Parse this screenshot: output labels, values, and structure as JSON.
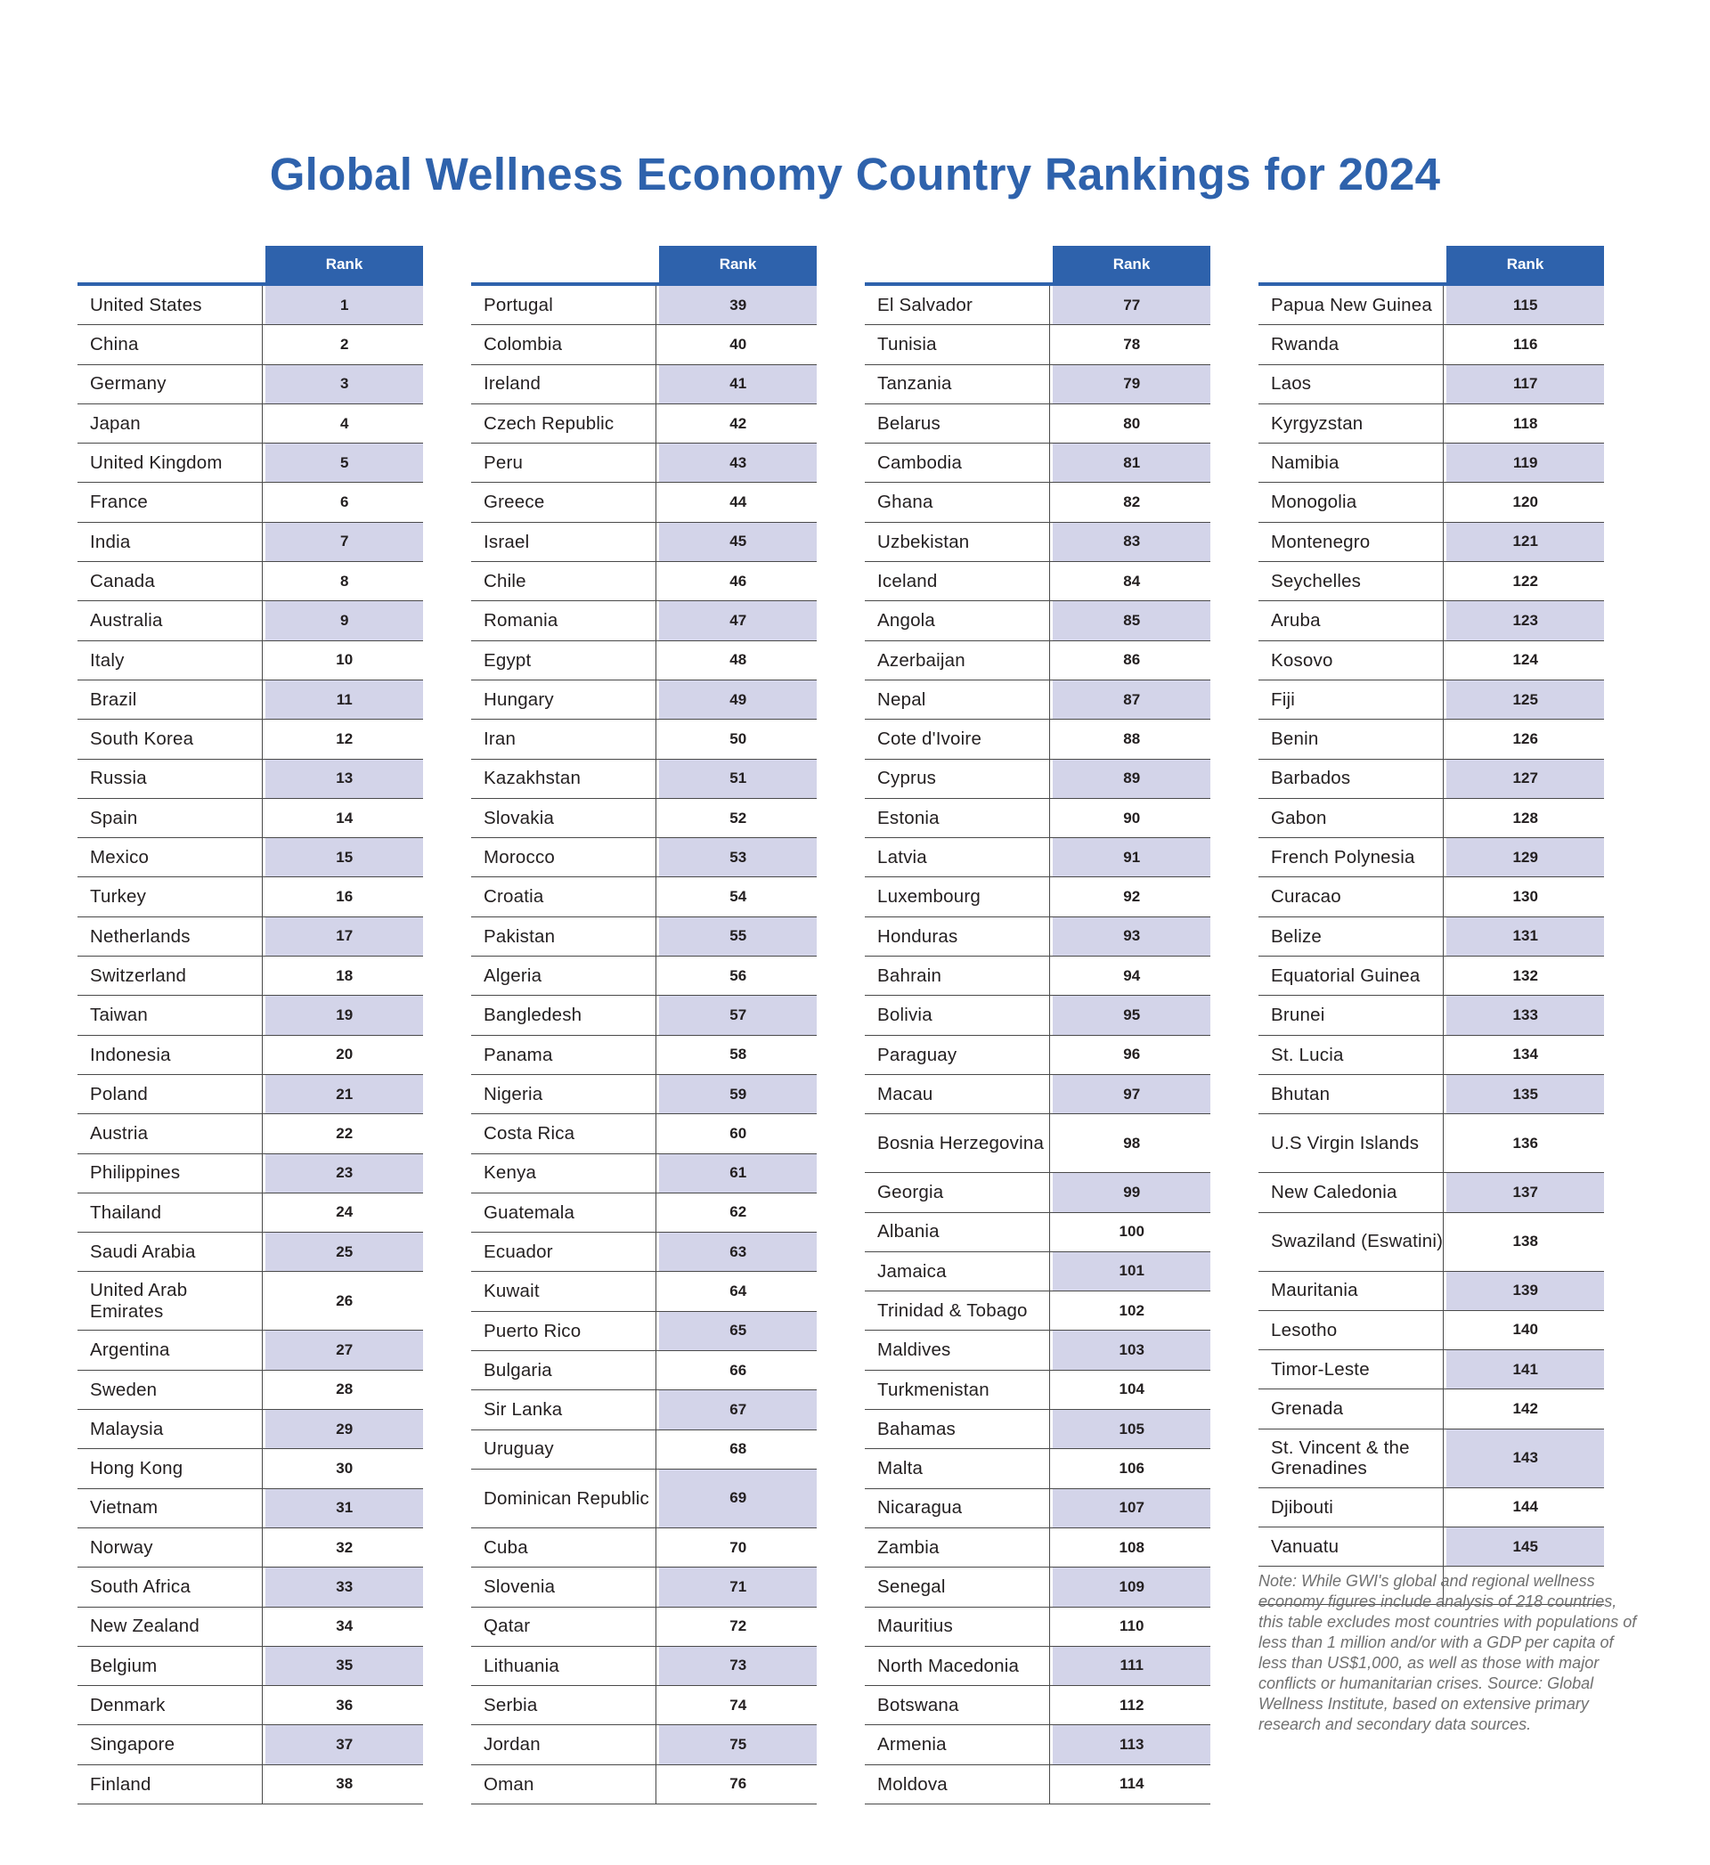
{
  "title": "Global Wellness Economy Country Rankings for 2024",
  "rank_header": "Rank",
  "columns": [
    [
      {
        "country": "United States",
        "rank": "1"
      },
      {
        "country": "China",
        "rank": "2"
      },
      {
        "country": "Germany",
        "rank": "3"
      },
      {
        "country": "Japan",
        "rank": "4"
      },
      {
        "country": "United Kingdom",
        "rank": "5"
      },
      {
        "country": "France",
        "rank": "6"
      },
      {
        "country": "India",
        "rank": "7"
      },
      {
        "country": "Canada",
        "rank": "8"
      },
      {
        "country": "Australia",
        "rank": "9"
      },
      {
        "country": "Italy",
        "rank": "10"
      },
      {
        "country": "Brazil",
        "rank": "11"
      },
      {
        "country": "South Korea",
        "rank": "12"
      },
      {
        "country": "Russia",
        "rank": "13"
      },
      {
        "country": "Spain",
        "rank": "14"
      },
      {
        "country": "Mexico",
        "rank": "15"
      },
      {
        "country": "Turkey",
        "rank": "16"
      },
      {
        "country": "Netherlands",
        "rank": "17"
      },
      {
        "country": "Switzerland",
        "rank": "18"
      },
      {
        "country": "Taiwan",
        "rank": "19"
      },
      {
        "country": "Indonesia",
        "rank": "20"
      },
      {
        "country": "Poland",
        "rank": "21"
      },
      {
        "country": "Austria",
        "rank": "22"
      },
      {
        "country": "Philippines",
        "rank": "23"
      },
      {
        "country": "Thailand",
        "rank": "24"
      },
      {
        "country": "Saudi Arabia",
        "rank": "25"
      },
      {
        "country": "United Arab Emirates",
        "rank": "26"
      },
      {
        "country": "Argentina",
        "rank": "27"
      },
      {
        "country": "Sweden",
        "rank": "28"
      },
      {
        "country": "Malaysia",
        "rank": "29"
      },
      {
        "country": "Hong Kong",
        "rank": "30"
      },
      {
        "country": "Vietnam",
        "rank": "31"
      },
      {
        "country": "Norway",
        "rank": "32"
      },
      {
        "country": "South Africa",
        "rank": "33"
      },
      {
        "country": "New Zealand",
        "rank": "34"
      },
      {
        "country": "Belgium",
        "rank": "35"
      },
      {
        "country": "Denmark",
        "rank": "36"
      },
      {
        "country": "Singapore",
        "rank": "37"
      },
      {
        "country": "Finland",
        "rank": "38"
      }
    ],
    [
      {
        "country": "Portugal",
        "rank": "39"
      },
      {
        "country": "Colombia",
        "rank": "40"
      },
      {
        "country": "Ireland",
        "rank": "41"
      },
      {
        "country": "Czech Republic",
        "rank": "42"
      },
      {
        "country": "Peru",
        "rank": "43"
      },
      {
        "country": "Greece",
        "rank": "44"
      },
      {
        "country": "Israel",
        "rank": "45"
      },
      {
        "country": "Chile",
        "rank": "46"
      },
      {
        "country": "Romania",
        "rank": "47"
      },
      {
        "country": "Egypt",
        "rank": "48"
      },
      {
        "country": "Hungary",
        "rank": "49"
      },
      {
        "country": "Iran",
        "rank": "50"
      },
      {
        "country": "Kazakhstan",
        "rank": "51"
      },
      {
        "country": "Slovakia",
        "rank": "52"
      },
      {
        "country": "Morocco",
        "rank": "53"
      },
      {
        "country": "Croatia",
        "rank": "54"
      },
      {
        "country": "Pakistan",
        "rank": "55"
      },
      {
        "country": "Algeria",
        "rank": "56"
      },
      {
        "country": "Bangledesh",
        "rank": "57"
      },
      {
        "country": "Panama",
        "rank": "58"
      },
      {
        "country": "Nigeria",
        "rank": "59"
      },
      {
        "country": "Costa Rica",
        "rank": "60"
      },
      {
        "country": "Kenya",
        "rank": "61"
      },
      {
        "country": "Guatemala",
        "rank": "62"
      },
      {
        "country": "Ecuador",
        "rank": "63"
      },
      {
        "country": "Kuwait",
        "rank": "64"
      },
      {
        "country": "Puerto Rico",
        "rank": "65"
      },
      {
        "country": "Bulgaria",
        "rank": "66"
      },
      {
        "country": "Sir Lanka",
        "rank": "67"
      },
      {
        "country": "Uruguay",
        "rank": "68"
      },
      {
        "country": "Dominican Republic",
        "rank": "69"
      },
      {
        "country": "Cuba",
        "rank": "70"
      },
      {
        "country": "Slovenia",
        "rank": "71"
      },
      {
        "country": "Qatar",
        "rank": "72"
      },
      {
        "country": "Lithuania",
        "rank": "73"
      },
      {
        "country": "Serbia",
        "rank": "74"
      },
      {
        "country": "Jordan",
        "rank": "75"
      },
      {
        "country": "Oman",
        "rank": "76"
      }
    ],
    [
      {
        "country": "El Salvador",
        "rank": "77"
      },
      {
        "country": "Tunisia",
        "rank": "78"
      },
      {
        "country": "Tanzania",
        "rank": "79"
      },
      {
        "country": "Belarus",
        "rank": "80"
      },
      {
        "country": "Cambodia",
        "rank": "81"
      },
      {
        "country": "Ghana",
        "rank": "82"
      },
      {
        "country": "Uzbekistan",
        "rank": "83"
      },
      {
        "country": "Iceland",
        "rank": "84"
      },
      {
        "country": "Angola",
        "rank": "85"
      },
      {
        "country": "Azerbaijan",
        "rank": "86"
      },
      {
        "country": "Nepal",
        "rank": "87"
      },
      {
        "country": "Cote d'Ivoire",
        "rank": "88"
      },
      {
        "country": "Cyprus",
        "rank": "89"
      },
      {
        "country": "Estonia",
        "rank": "90"
      },
      {
        "country": "Latvia",
        "rank": "91"
      },
      {
        "country": "Luxembourg",
        "rank": "92"
      },
      {
        "country": "Honduras",
        "rank": "93"
      },
      {
        "country": "Bahrain",
        "rank": "94"
      },
      {
        "country": "Bolivia",
        "rank": "95"
      },
      {
        "country": "Paraguay",
        "rank": "96"
      },
      {
        "country": "Macau",
        "rank": "97"
      },
      {
        "country": "Bosnia Herzegovina",
        "rank": "98"
      },
      {
        "country": "Georgia",
        "rank": "99"
      },
      {
        "country": "Albania",
        "rank": "100"
      },
      {
        "country": "Jamaica",
        "rank": "101"
      },
      {
        "country": "Trinidad & Tobago",
        "rank": "102"
      },
      {
        "country": "Maldives",
        "rank": "103"
      },
      {
        "country": "Turkmenistan",
        "rank": "104"
      },
      {
        "country": "Bahamas",
        "rank": "105"
      },
      {
        "country": "Malta",
        "rank": "106"
      },
      {
        "country": "Nicaragua",
        "rank": "107"
      },
      {
        "country": "Zambia",
        "rank": "108"
      },
      {
        "country": "Senegal",
        "rank": "109"
      },
      {
        "country": "Mauritius",
        "rank": "110"
      },
      {
        "country": "North Macedonia",
        "rank": "111"
      },
      {
        "country": "Botswana",
        "rank": "112"
      },
      {
        "country": "Armenia",
        "rank": "113"
      },
      {
        "country": "Moldova",
        "rank": "114"
      }
    ],
    [
      {
        "country": "Papua New Guinea",
        "rank": "115"
      },
      {
        "country": "Rwanda",
        "rank": "116"
      },
      {
        "country": "Laos",
        "rank": "117"
      },
      {
        "country": "Kyrgyzstan",
        "rank": "118"
      },
      {
        "country": "Namibia",
        "rank": "119"
      },
      {
        "country": "Monogolia",
        "rank": "120"
      },
      {
        "country": "Montenegro",
        "rank": "121"
      },
      {
        "country": "Seychelles",
        "rank": "122"
      },
      {
        "country": "Aruba",
        "rank": "123"
      },
      {
        "country": "Kosovo",
        "rank": "124"
      },
      {
        "country": "Fiji",
        "rank": "125"
      },
      {
        "country": "Benin",
        "rank": "126"
      },
      {
        "country": "Barbados",
        "rank": "127"
      },
      {
        "country": "Gabon",
        "rank": "128"
      },
      {
        "country": "French Polynesia",
        "rank": "129"
      },
      {
        "country": "Curacao",
        "rank": "130"
      },
      {
        "country": "Belize",
        "rank": "131"
      },
      {
        "country": "Equatorial Guinea",
        "rank": "132"
      },
      {
        "country": "Brunei",
        "rank": "133"
      },
      {
        "country": "St. Lucia",
        "rank": "134"
      },
      {
        "country": "Bhutan",
        "rank": "135"
      },
      {
        "country": "U.S Virgin Islands",
        "rank": "136"
      },
      {
        "country": "New Caledonia",
        "rank": "137"
      },
      {
        "country": "Swaziland (Eswatini)",
        "rank": "138"
      },
      {
        "country": "Mauritania",
        "rank": "139"
      },
      {
        "country": "Lesotho",
        "rank": "140"
      },
      {
        "country": "Timor-Leste",
        "rank": "141"
      },
      {
        "country": "Grenada",
        "rank": "142"
      },
      {
        "country": "St. Vincent & the Grenadines",
        "rank": "143"
      },
      {
        "country": "Djibouti",
        "rank": "144"
      },
      {
        "country": "Vanuatu",
        "rank": "145"
      }
    ]
  ],
  "note": "Note: While GWI's global and regional wellness economy figures include analysis of 218 countries, this table excludes most countries with populations of less than 1 million and/or with a GDP per capita of less than US$1,000, as well as those with major conflicts or humanitarian crises. Source: Global Wellness Institute, based on extensive primary research and secondary data sources."
}
